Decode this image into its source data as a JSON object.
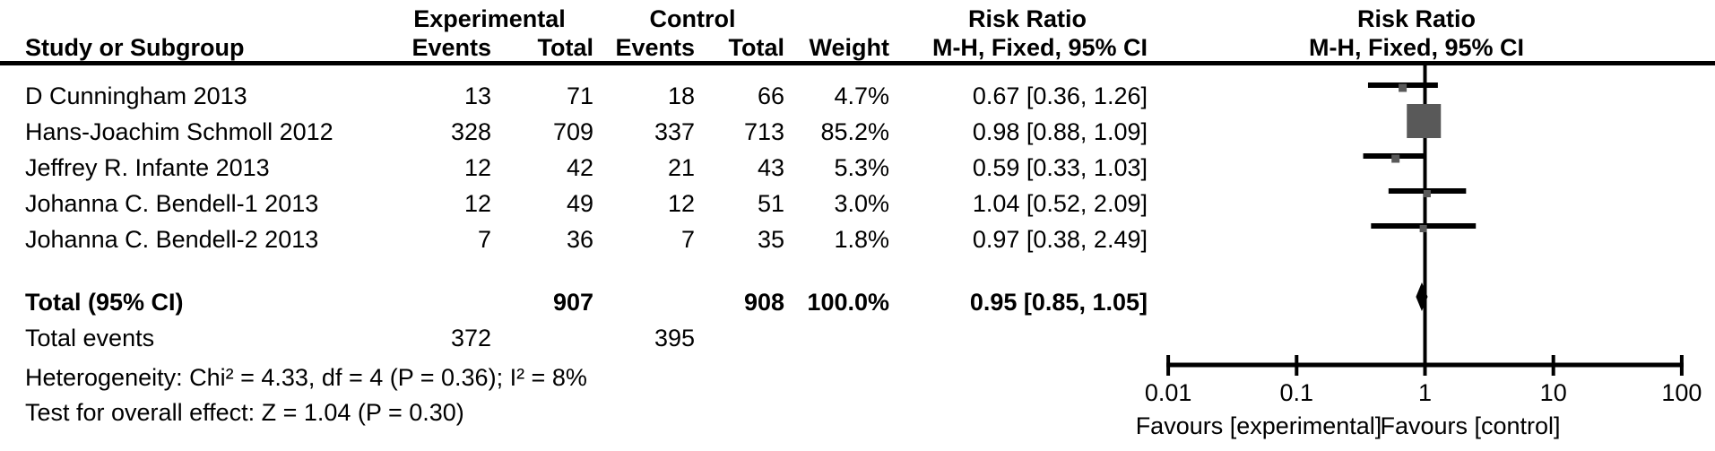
{
  "headers": {
    "experimental": "Experimental",
    "control": "Control",
    "risk_ratio_left": "Risk Ratio",
    "risk_ratio_right": "Risk Ratio",
    "study": "Study or Subgroup",
    "events": "Events",
    "total": "Total",
    "weight": "Weight",
    "mh_left": "M-H, Fixed, 95% CI",
    "mh_right": "M-H, Fixed, 95% CI"
  },
  "colors": {
    "marker_square": "#595959",
    "line": "#000000",
    "background": "#ffffff"
  },
  "chart_data": {
    "type": "forest",
    "scale": "log10",
    "x_ticks": [
      0.01,
      0.1,
      1,
      10,
      100
    ],
    "x_tick_labels": [
      "0.01",
      "0.1",
      "1",
      "10",
      "100"
    ],
    "null_line": 1,
    "favours_left": "Favours [experimental]",
    "favours_right": "Favours [control]",
    "studies": [
      {
        "name": "D Cunningham 2013",
        "exp_events": 13,
        "exp_total": 71,
        "ctrl_events": 18,
        "ctrl_total": 66,
        "weight": "4.7%",
        "weight_pct": 4.7,
        "rr": 0.67,
        "ci_low": 0.36,
        "ci_high": 1.26,
        "ci_text": "0.67 [0.36, 1.26]"
      },
      {
        "name": "Hans-Joachim Schmoll 2012",
        "exp_events": 328,
        "exp_total": 709,
        "ctrl_events": 337,
        "ctrl_total": 713,
        "weight": "85.2%",
        "weight_pct": 85.2,
        "rr": 0.98,
        "ci_low": 0.88,
        "ci_high": 1.09,
        "ci_text": "0.98 [0.88, 1.09]"
      },
      {
        "name": "Jeffrey R. Infante 2013",
        "exp_events": 12,
        "exp_total": 42,
        "ctrl_events": 21,
        "ctrl_total": 43,
        "weight": "5.3%",
        "weight_pct": 5.3,
        "rr": 0.59,
        "ci_low": 0.33,
        "ci_high": 1.03,
        "ci_text": "0.59 [0.33, 1.03]"
      },
      {
        "name": "Johanna C. Bendell-1 2013",
        "exp_events": 12,
        "exp_total": 49,
        "ctrl_events": 12,
        "ctrl_total": 51,
        "weight": "3.0%",
        "weight_pct": 3.0,
        "rr": 1.04,
        "ci_low": 0.52,
        "ci_high": 2.09,
        "ci_text": "1.04 [0.52, 2.09]"
      },
      {
        "name": "Johanna C. Bendell-2 2013",
        "exp_events": 7,
        "exp_total": 36,
        "ctrl_events": 7,
        "ctrl_total": 35,
        "weight": "1.8%",
        "weight_pct": 1.8,
        "rr": 0.97,
        "ci_low": 0.38,
        "ci_high": 2.49,
        "ci_text": "0.97 [0.38, 2.49]"
      }
    ],
    "total": {
      "label": "Total (95% CI)",
      "exp_total": 907,
      "ctrl_total": 908,
      "weight": "100.0%",
      "rr": 0.95,
      "ci_low": 0.85,
      "ci_high": 1.05,
      "ci_text": "0.95 [0.85, 1.05]"
    },
    "total_events": {
      "label": "Total events",
      "exp": 372,
      "ctrl": 395
    },
    "heterogeneity": "Heterogeneity: Chi² = 4.33, df = 4 (P = 0.36); I² = 8%",
    "overall_effect": "Test for overall effect: Z = 1.04 (P = 0.30)"
  }
}
